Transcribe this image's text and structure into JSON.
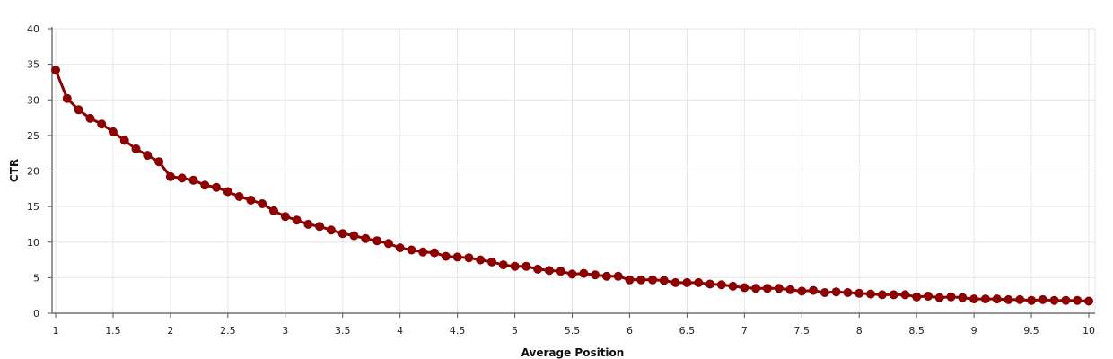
{
  "chart_data": {
    "type": "line",
    "title": "",
    "xlabel": "Average Position",
    "ylabel": "CTR",
    "xlim": [
      1,
      10
    ],
    "ylim": [
      0,
      40
    ],
    "x_ticks": [
      "1",
      "1.5",
      "2",
      "2.5",
      "3",
      "3.5",
      "4",
      "4.5",
      "5",
      "5.5",
      "6",
      "6.5",
      "7",
      "7.5",
      "8",
      "8.5",
      "9",
      "9.5",
      "10"
    ],
    "y_ticks": [
      "0",
      "5",
      "10",
      "15",
      "20",
      "25",
      "30",
      "35",
      "40"
    ],
    "grid": true,
    "legend": "none",
    "series": [
      {
        "color": "#8b0000",
        "x": [
          1,
          1.1,
          1.2,
          1.3,
          1.4,
          1.5,
          1.6,
          1.7,
          1.8,
          1.9,
          2,
          2.1,
          2.2,
          2.3,
          2.4,
          2.5,
          2.6,
          2.7,
          2.8,
          2.9,
          3,
          3.1,
          3.2,
          3.3,
          3.4,
          3.5,
          3.6,
          3.7,
          3.8,
          3.9,
          4,
          4.1,
          4.2,
          4.3,
          4.4,
          4.5,
          4.6,
          4.7,
          4.8,
          4.9,
          5,
          5.1,
          5.2,
          5.3,
          5.4,
          5.5,
          5.6,
          5.7,
          5.8,
          5.9,
          6,
          6.1,
          6.2,
          6.3,
          6.4,
          6.5,
          6.6,
          6.7,
          6.8,
          6.9,
          7,
          7.1,
          7.2,
          7.3,
          7.4,
          7.5,
          7.6,
          7.7,
          7.8,
          7.9,
          8,
          8.1,
          8.2,
          8.3,
          8.4,
          8.5,
          8.6,
          8.7,
          8.8,
          8.9,
          9,
          9.1,
          9.2,
          9.3,
          9.4,
          9.5,
          9.6,
          9.7,
          9.8,
          9.9,
          10
        ],
        "y": [
          34.2,
          30.2,
          28.6,
          27.4,
          26.6,
          25.5,
          24.3,
          23.1,
          22.2,
          21.3,
          19.2,
          19.0,
          18.7,
          18.0,
          17.7,
          17.1,
          16.4,
          15.9,
          15.4,
          14.4,
          13.6,
          13.1,
          12.5,
          12.2,
          11.7,
          11.2,
          10.9,
          10.5,
          10.2,
          9.8,
          9.2,
          8.9,
          8.6,
          8.5,
          8.0,
          7.9,
          7.8,
          7.5,
          7.2,
          6.8,
          6.6,
          6.6,
          6.2,
          6.0,
          5.9,
          5.5,
          5.6,
          5.4,
          5.2,
          5.2,
          4.7,
          4.7,
          4.7,
          4.6,
          4.3,
          4.3,
          4.3,
          4.1,
          4.0,
          3.8,
          3.6,
          3.5,
          3.5,
          3.5,
          3.3,
          3.1,
          3.2,
          2.9,
          3.0,
          2.9,
          2.8,
          2.7,
          2.6,
          2.6,
          2.6,
          2.3,
          2.4,
          2.2,
          2.3,
          2.2,
          2.0,
          2.0,
          2.0,
          1.9,
          1.9,
          1.8,
          1.9,
          1.8,
          1.8,
          1.8,
          1.7
        ]
      }
    ]
  },
  "colors": {
    "series_line": "#8b0000",
    "series_point": "#8b0000",
    "grid": "#e6e6e6",
    "axis": "#555555"
  }
}
